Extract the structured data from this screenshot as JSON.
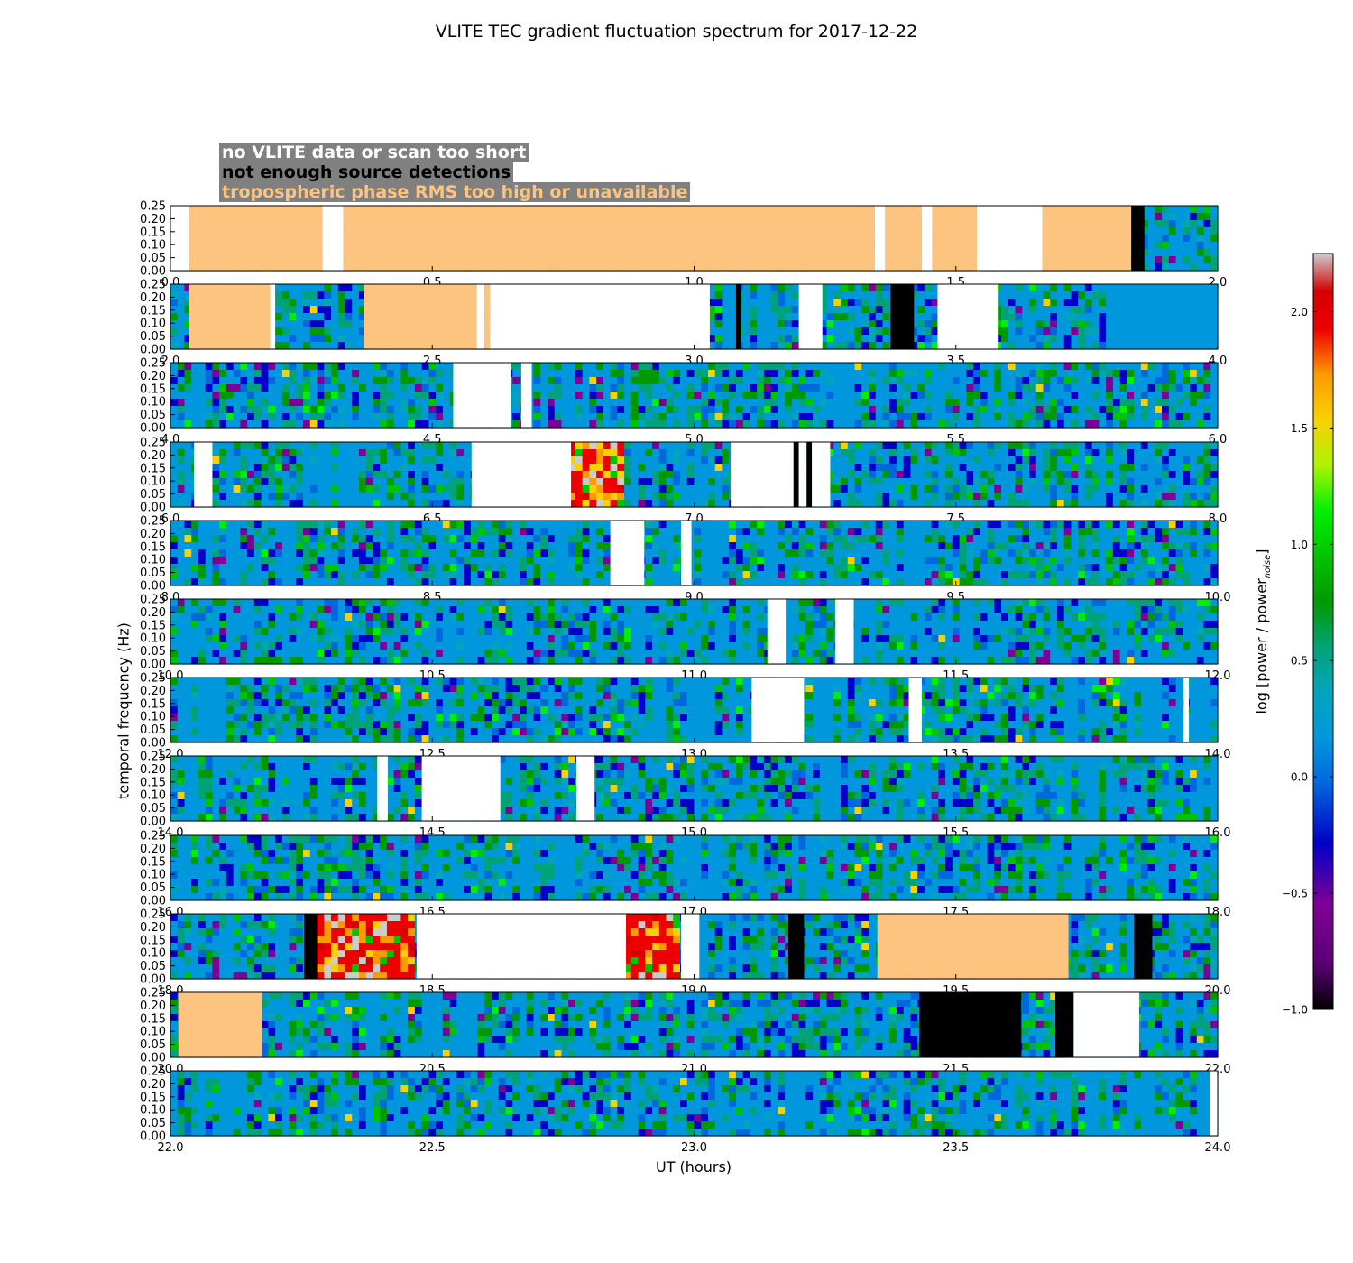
{
  "title": "VLITE TEC gradient fluctuation spectrum for 2017-12-22",
  "legend": [
    {
      "label": "no VLITE data or scan too short",
      "text_color": "#ffffff",
      "fill": "#ffffff"
    },
    {
      "label": "not enough source detections",
      "text_color": "#000000",
      "fill": "#000000"
    },
    {
      "label": "tropospheric phase RMS too high or unavailable",
      "text_color": "#fdc47f",
      "fill": "#fdc47f"
    }
  ],
  "colorbar": {
    "label_main": "log [power / power",
    "label_sub": "noise",
    "label_end": "]",
    "range": [
      -1.0,
      2.25
    ],
    "ticks": [
      "−1.0",
      "−0.5",
      "0.0",
      "0.5",
      "1.0",
      "1.5",
      "2.0"
    ],
    "colormap": "nipy_spectral"
  },
  "chart_data": {
    "type": "heatmap",
    "xlabel": "UT (hours)",
    "ylabel": "temporal frequency (Hz)",
    "ylim": [
      0,
      0.25
    ],
    "yticks": [
      "0.00",
      "0.05",
      "0.10",
      "0.15",
      "0.20",
      "0.25"
    ],
    "palette": {
      "white": "#ffffff",
      "black": "#000000",
      "orange": "#fdc47f",
      "baseline": "#0097dd"
    },
    "panels": [
      {
        "xlim": [
          0,
          2
        ],
        "xticks": [
          "0.0",
          "0.5",
          "1.0",
          "1.5",
          "2.0"
        ],
        "masked": [
          [
            0,
            0.035,
            "white"
          ],
          [
            0.035,
            0.29,
            "orange"
          ],
          [
            0.29,
            0.33,
            "white"
          ],
          [
            0.33,
            1.345,
            "orange"
          ],
          [
            1.345,
            1.365,
            "white"
          ],
          [
            1.365,
            1.435,
            "orange"
          ],
          [
            1.435,
            1.455,
            "white"
          ],
          [
            1.455,
            1.54,
            "orange"
          ],
          [
            1.54,
            1.665,
            "white"
          ],
          [
            1.665,
            1.835,
            "orange"
          ],
          [
            1.835,
            1.86,
            "black"
          ]
        ],
        "hot": [],
        "calm": []
      },
      {
        "xlim": [
          2,
          4
        ],
        "xticks": [
          "2.0",
          "2.5",
          "3.0",
          "3.5",
          "4.0"
        ],
        "masked": [
          [
            2.035,
            2.19,
            "orange"
          ],
          [
            2.19,
            2.2,
            "white"
          ],
          [
            2.37,
            2.585,
            "orange"
          ],
          [
            2.585,
            2.6,
            "white"
          ],
          [
            2.6,
            2.61,
            "orange"
          ],
          [
            2.61,
            3.03,
            "white"
          ],
          [
            3.08,
            3.09,
            "black"
          ],
          [
            3.2,
            3.245,
            "white"
          ],
          [
            3.375,
            3.42,
            "black"
          ],
          [
            3.465,
            3.58,
            "white"
          ]
        ],
        "hot": [],
        "calm": [
          [
            3.8,
            4.0
          ]
        ]
      },
      {
        "xlim": [
          4,
          6
        ],
        "xticks": [
          "4.0",
          "4.5",
          "5.0",
          "5.5",
          "6.0"
        ],
        "masked": [
          [
            4.54,
            4.65,
            "white"
          ],
          [
            4.67,
            4.69,
            "white"
          ]
        ],
        "hot": [],
        "calm": []
      },
      {
        "xlim": [
          6,
          8
        ],
        "xticks": [
          "6.0",
          "6.5",
          "7.0",
          "7.5",
          "8.0"
        ],
        "masked": [
          [
            6.045,
            6.08,
            "white"
          ],
          [
            6.575,
            6.765,
            "white"
          ],
          [
            7.07,
            7.19,
            "white"
          ],
          [
            7.19,
            7.2,
            "black"
          ],
          [
            7.2,
            7.215,
            "white"
          ],
          [
            7.215,
            7.225,
            "black"
          ],
          [
            7.225,
            7.26,
            "white"
          ]
        ],
        "hot": [
          [
            6.765,
            6.87
          ]
        ],
        "calm": []
      },
      {
        "xlim": [
          8,
          10
        ],
        "xticks": [
          "8.0",
          "8.5",
          "9.0",
          "9.5",
          "10.0"
        ],
        "masked": [
          [
            8.84,
            8.905,
            "white"
          ],
          [
            8.975,
            8.995,
            "white"
          ]
        ],
        "hot": [],
        "calm": []
      },
      {
        "xlim": [
          10,
          12
        ],
        "xticks": [
          "10.0",
          "10.5",
          "11.0",
          "11.5",
          "12.0"
        ],
        "masked": [
          [
            11.14,
            11.175,
            "white"
          ],
          [
            11.27,
            11.305,
            "white"
          ]
        ],
        "hot": [],
        "calm": []
      },
      {
        "xlim": [
          12,
          14
        ],
        "xticks": [
          "12.0",
          "12.5",
          "13.0",
          "13.5",
          "14.0"
        ],
        "masked": [
          [
            13.11,
            13.21,
            "white"
          ],
          [
            13.41,
            13.435,
            "white"
          ],
          [
            13.935,
            13.945,
            "white"
          ]
        ],
        "hot": [],
        "calm": []
      },
      {
        "xlim": [
          14,
          16
        ],
        "xticks": [
          "14.0",
          "14.5",
          "15.0",
          "15.5",
          "16.0"
        ],
        "masked": [
          [
            14.395,
            14.415,
            "white"
          ],
          [
            14.48,
            14.63,
            "white"
          ],
          [
            14.775,
            14.81,
            "white"
          ]
        ],
        "hot": [],
        "calm": []
      },
      {
        "xlim": [
          16,
          18
        ],
        "xticks": [
          "16.0",
          "16.5",
          "17.0",
          "17.5",
          "18.0"
        ],
        "masked": [],
        "hot": [],
        "calm": []
      },
      {
        "xlim": [
          18,
          20
        ],
        "xticks": [
          "18.0",
          "18.5",
          "19.0",
          "19.5",
          "20.0"
        ],
        "masked": [
          [
            18.255,
            18.28,
            "black"
          ],
          [
            18.47,
            18.87,
            "white"
          ],
          [
            18.975,
            19.01,
            "white"
          ],
          [
            19.18,
            19.21,
            "black"
          ],
          [
            19.35,
            19.715,
            "orange"
          ],
          [
            19.84,
            19.875,
            "black"
          ]
        ],
        "hot": [
          [
            18.28,
            18.47
          ],
          [
            18.87,
            18.975
          ]
        ],
        "calm": []
      },
      {
        "xlim": [
          20,
          22
        ],
        "xticks": [
          "20.0",
          "20.5",
          "21.0",
          "21.5",
          "22.0"
        ],
        "masked": [
          [
            20.015,
            20.175,
            "orange"
          ],
          [
            21.43,
            21.625,
            "black"
          ],
          [
            21.69,
            21.725,
            "black"
          ],
          [
            21.725,
            21.85,
            "white"
          ]
        ],
        "hot": [],
        "calm": []
      },
      {
        "xlim": [
          22,
          24
        ],
        "xticks": [
          "22.0",
          "22.5",
          "23.0",
          "23.5",
          "24.0"
        ],
        "masked": [
          [
            23.985,
            24.0,
            "white"
          ]
        ],
        "hot": [],
        "calm": []
      }
    ]
  }
}
